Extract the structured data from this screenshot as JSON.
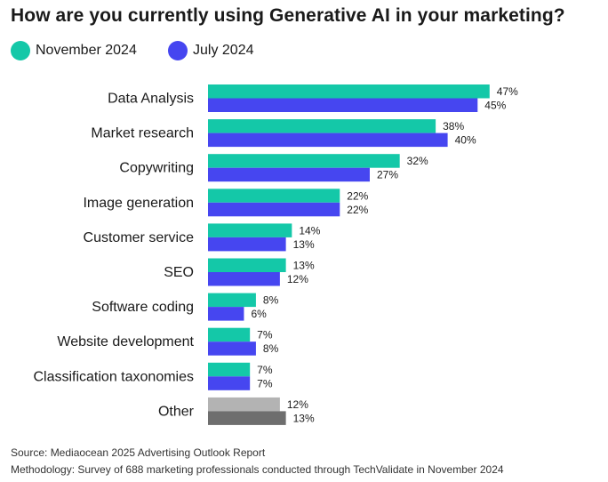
{
  "chart_data": {
    "type": "bar",
    "orientation": "horizontal",
    "title": "How are you currently using Generative AI in your marketing?",
    "categories": [
      "Data Analysis",
      "Market research",
      "Copywriting",
      "Image generation",
      "Customer service",
      "SEO",
      "Software coding",
      "Website development",
      "Classification taxonomies",
      "Other"
    ],
    "series": [
      {
        "name": "November 2024",
        "values": [
          47,
          38,
          32,
          22,
          14,
          13,
          8,
          7,
          7,
          12
        ],
        "color": "#14c8a8",
        "other_color": "#b3b3b3"
      },
      {
        "name": "July 2024",
        "values": [
          45,
          40,
          27,
          22,
          13,
          12,
          6,
          8,
          7,
          13
        ],
        "color": "#4646f0",
        "other_color": "#6e6e6e"
      }
    ],
    "value_suffix": "%",
    "legend_position": "top-left",
    "grid": false
  },
  "footer": {
    "source": "Source: Mediaocean 2025 Advertising Outlook Report",
    "methodology": "Methodology: Survey of 688 marketing professionals conducted through TechValidate in November 2024"
  }
}
